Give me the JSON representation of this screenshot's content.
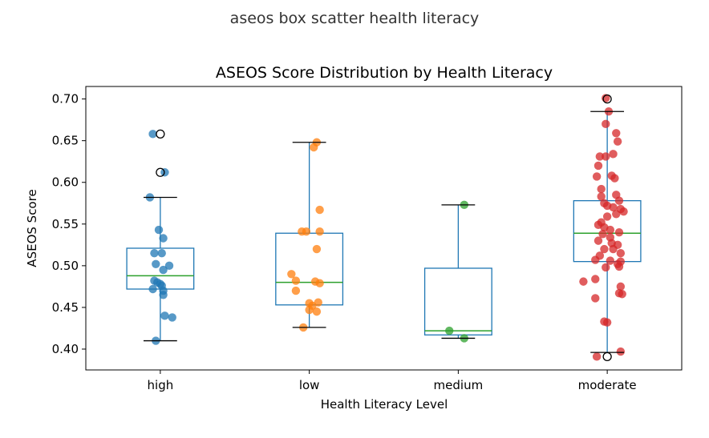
{
  "page": {
    "title": "aseos box scatter health literacy"
  },
  "chart_data": {
    "type": "box",
    "title": "ASEOS Score Distribution by Health Literacy",
    "xlabel": "Health Literacy Level",
    "ylabel": "ASEOS Score",
    "ylim": [
      0.375,
      0.715
    ],
    "yticks": [
      0.4,
      0.45,
      0.5,
      0.55,
      0.6,
      0.65,
      0.7
    ],
    "ytick_labels": [
      "0.40",
      "0.45",
      "0.50",
      "0.55",
      "0.60",
      "0.65",
      "0.70"
    ],
    "grid": false,
    "categories": [
      "high",
      "low",
      "medium",
      "moderate"
    ],
    "colors": {
      "high": "#1f77b4",
      "low": "#ff7f0e",
      "medium": "#2ca02c",
      "moderate": "#d62728",
      "box": "#1f77b4",
      "median": "#2ca02c",
      "whisker_cap": "#000000"
    },
    "boxes": [
      {
        "category": "high",
        "whislo": 0.41,
        "q1": 0.472,
        "median": 0.488,
        "q3": 0.521,
        "whishi": 0.582,
        "fliers": [
          0.612,
          0.658
        ],
        "points": [
          [
            -0.05,
            0.658
          ],
          [
            0.03,
            0.612
          ],
          [
            -0.07,
            0.582
          ],
          [
            -0.01,
            0.543
          ],
          [
            0.02,
            0.533
          ],
          [
            -0.04,
            0.515
          ],
          [
            0.01,
            0.515
          ],
          [
            -0.03,
            0.502
          ],
          [
            0.06,
            0.5
          ],
          [
            0.02,
            0.495
          ],
          [
            -0.04,
            0.482
          ],
          [
            -0.02,
            0.48
          ],
          [
            0.0,
            0.478
          ],
          [
            0.01,
            0.476
          ],
          [
            -0.05,
            0.472
          ],
          [
            0.02,
            0.47
          ],
          [
            0.02,
            0.465
          ],
          [
            0.03,
            0.44
          ],
          [
            0.08,
            0.438
          ],
          [
            -0.03,
            0.41
          ]
        ]
      },
      {
        "category": "low",
        "whislo": 0.426,
        "q1": 0.453,
        "median": 0.48,
        "q3": 0.539,
        "whishi": 0.648,
        "fliers": [],
        "points": [
          [
            0.05,
            0.648
          ],
          [
            0.03,
            0.642
          ],
          [
            0.07,
            0.567
          ],
          [
            -0.05,
            0.541
          ],
          [
            -0.02,
            0.541
          ],
          [
            0.07,
            0.541
          ],
          [
            0.05,
            0.52
          ],
          [
            -0.12,
            0.49
          ],
          [
            -0.09,
            0.482
          ],
          [
            0.04,
            0.481
          ],
          [
            0.07,
            0.479
          ],
          [
            -0.09,
            0.47
          ],
          [
            0.0,
            0.455
          ],
          [
            0.06,
            0.456
          ],
          [
            0.02,
            0.452
          ],
          [
            0.0,
            0.447
          ],
          [
            0.05,
            0.445
          ],
          [
            -0.04,
            0.426
          ]
        ]
      },
      {
        "category": "medium",
        "whislo": 0.413,
        "q1": 0.417,
        "median": 0.422,
        "q3": 0.497,
        "whishi": 0.573,
        "fliers": [],
        "points": [
          [
            0.04,
            0.573
          ],
          [
            -0.06,
            0.422
          ],
          [
            0.04,
            0.413
          ]
        ]
      },
      {
        "category": "moderate",
        "whislo": 0.396,
        "q1": 0.505,
        "median": 0.539,
        "q3": 0.578,
        "whishi": 0.685,
        "fliers": [
          0.7,
          0.391
        ],
        "points": [
          [
            -0.01,
            0.701
          ],
          [
            0.01,
            0.685
          ],
          [
            -0.01,
            0.67
          ],
          [
            0.06,
            0.659
          ],
          [
            0.07,
            0.649
          ],
          [
            0.04,
            0.634
          ],
          [
            -0.05,
            0.631
          ],
          [
            -0.01,
            0.631
          ],
          [
            -0.06,
            0.62
          ],
          [
            -0.07,
            0.607
          ],
          [
            0.03,
            0.608
          ],
          [
            0.05,
            0.605
          ],
          [
            -0.04,
            0.592
          ],
          [
            0.06,
            0.585
          ],
          [
            -0.04,
            0.583
          ],
          [
            0.08,
            0.578
          ],
          [
            -0.02,
            0.575
          ],
          [
            0.0,
            0.572
          ],
          [
            0.04,
            0.57
          ],
          [
            0.09,
            0.568
          ],
          [
            0.11,
            0.565
          ],
          [
            0.06,
            0.562
          ],
          [
            0.0,
            0.559
          ],
          [
            -0.04,
            0.552
          ],
          [
            -0.06,
            0.549
          ],
          [
            -0.02,
            0.546
          ],
          [
            0.02,
            0.543
          ],
          [
            0.08,
            0.54
          ],
          [
            -0.03,
            0.538
          ],
          [
            0.02,
            0.534
          ],
          [
            -0.06,
            0.53
          ],
          [
            0.03,
            0.527
          ],
          [
            0.07,
            0.525
          ],
          [
            -0.02,
            0.52
          ],
          [
            0.04,
            0.52
          ],
          [
            0.09,
            0.515
          ],
          [
            -0.05,
            0.512
          ],
          [
            -0.08,
            0.507
          ],
          [
            0.02,
            0.506
          ],
          [
            0.09,
            0.505
          ],
          [
            0.07,
            0.502
          ],
          [
            0.08,
            0.499
          ],
          [
            -0.01,
            0.498
          ],
          [
            -0.08,
            0.484
          ],
          [
            -0.16,
            0.481
          ],
          [
            0.09,
            0.475
          ],
          [
            0.08,
            0.467
          ],
          [
            0.1,
            0.466
          ],
          [
            -0.08,
            0.461
          ],
          [
            -0.02,
            0.433
          ],
          [
            0.0,
            0.432
          ],
          [
            0.09,
            0.397
          ],
          [
            -0.07,
            0.391
          ]
        ]
      }
    ]
  }
}
